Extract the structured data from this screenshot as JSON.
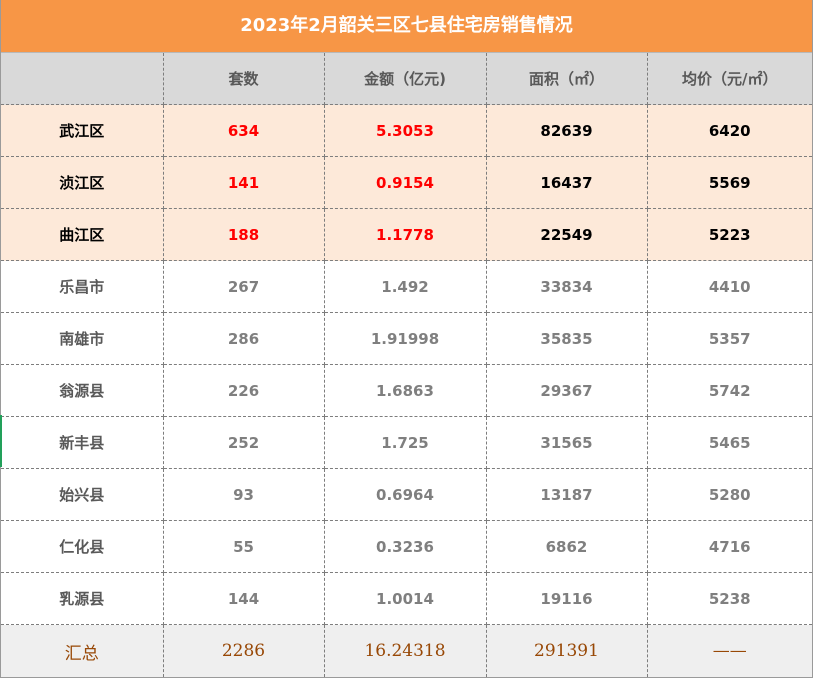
{
  "title": "2023年2月韶关三区七县住宅房销售情况",
  "columns": [
    "",
    "套数",
    "金额（亿元)",
    "面积（㎡）",
    "均价（元/㎡）"
  ],
  "highlight_rows": [
    {
      "name": "武江区",
      "units": "634",
      "amount": "5.3053",
      "area": "82639",
      "price": "6420"
    },
    {
      "name": "浈江区",
      "units": "141",
      "amount": "0.9154",
      "area": "16437",
      "price": "5569"
    },
    {
      "name": "曲江区",
      "units": "188",
      "amount": "1.1778",
      "area": "22549",
      "price": "5223"
    }
  ],
  "rows": [
    {
      "name": "乐昌市",
      "units": "267",
      "amount": "1.492",
      "area": "33834",
      "price": "4410"
    },
    {
      "name": "南雄市",
      "units": "286",
      "amount": "1.91998",
      "area": "35835",
      "price": "5357"
    },
    {
      "name": "翁源县",
      "units": "226",
      "amount": "1.6863",
      "area": "29367",
      "price": "5742"
    },
    {
      "name": "新丰县",
      "units": "252",
      "amount": "1.725",
      "area": "31565",
      "price": "5465"
    },
    {
      "name": "始兴县",
      "units": "93",
      "amount": "0.6964",
      "area": "13187",
      "price": "5280"
    },
    {
      "name": "仁化县",
      "units": "55",
      "amount": "0.3236",
      "area": "6862",
      "price": "4716"
    },
    {
      "name": "乳源县",
      "units": "144",
      "amount": "1.0014",
      "area": "19116",
      "price": "5238"
    }
  ],
  "total": {
    "name": "汇总",
    "units": "2286",
    "amount": "16.24318",
    "area": "291391",
    "price": "——"
  },
  "colors": {
    "title_bg": "#f79646",
    "header_bg": "#d9d9d9",
    "highlight_bg": "#fde9d9",
    "red": "#ff0000",
    "total_text": "#984806"
  }
}
